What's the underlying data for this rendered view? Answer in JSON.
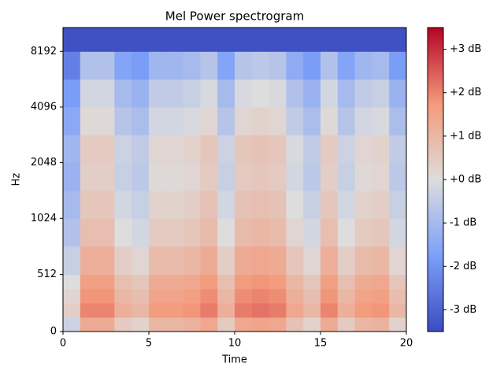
{
  "chart_data": {
    "type": "heatmap",
    "title": "Mel Power spectrogram",
    "xlabel": "Time",
    "ylabel": "Hz",
    "xlim": [
      0,
      20
    ],
    "xticks": [
      0,
      5,
      10,
      15,
      20
    ],
    "ylim": [
      0,
      11025
    ],
    "yticks": [
      0,
      512,
      1024,
      2048,
      4096,
      8192
    ],
    "yscale": "symlog",
    "linthresh": 1000,
    "base": 2,
    "y_edges": [
      0,
      128,
      256,
      384,
      512,
      768,
      1024,
      1448,
      2048,
      2896,
      4096,
      5793,
      8192,
      11025
    ],
    "z": [
      [
        -0.3,
        1.3,
        1.3,
        0.5,
        0.3,
        1.0,
        1.0,
        1.1,
        1.4,
        0.5,
        1.4,
        1.5,
        1.4,
        0.7,
        0.3,
        1.3,
        0.5,
        1.0,
        1.1,
        0.3
      ],
      [
        0.4,
        2.0,
        2.0,
        1.2,
        1.0,
        1.7,
        1.7,
        1.8,
        2.1,
        1.2,
        2.1,
        2.2,
        2.1,
        1.4,
        1.0,
        2.0,
        1.2,
        1.7,
        1.8,
        1.0
      ],
      [
        0.2,
        1.8,
        1.8,
        1.0,
        0.8,
        1.5,
        1.5,
        1.6,
        1.9,
        1.0,
        1.9,
        2.0,
        1.9,
        1.2,
        0.8,
        1.8,
        1.0,
        1.5,
        1.6,
        0.8
      ],
      [
        0.0,
        1.6,
        1.6,
        0.8,
        0.6,
        1.3,
        1.3,
        1.4,
        1.7,
        0.8,
        1.7,
        1.8,
        1.7,
        1.0,
        0.6,
        1.6,
        0.8,
        1.3,
        1.4,
        0.6
      ],
      [
        -0.4,
        1.2,
        1.2,
        0.4,
        0.2,
        0.9,
        0.9,
        1.0,
        1.3,
        0.4,
        1.3,
        1.4,
        1.3,
        0.6,
        0.2,
        1.2,
        0.4,
        0.9,
        1.0,
        0.2
      ],
      [
        -0.8,
        0.8,
        0.8,
        0.0,
        -0.2,
        0.5,
        0.5,
        0.6,
        0.9,
        0.0,
        0.9,
        1.0,
        0.9,
        0.2,
        -0.2,
        0.8,
        0.0,
        0.5,
        0.6,
        -0.2
      ],
      [
        -1.0,
        0.6,
        0.6,
        -0.2,
        -0.4,
        0.3,
        0.3,
        0.4,
        0.7,
        -0.2,
        0.7,
        0.8,
        0.7,
        0.0,
        -0.4,
        0.6,
        -0.2,
        0.3,
        0.4,
        -0.4
      ],
      [
        -1.2,
        0.4,
        0.4,
        -0.4,
        -0.6,
        0.1,
        0.1,
        0.2,
        0.5,
        -0.4,
        0.5,
        0.6,
        0.5,
        -0.2,
        -0.6,
        0.4,
        -0.4,
        0.1,
        0.2,
        -0.6
      ],
      [
        -1.1,
        0.5,
        0.5,
        -0.3,
        -0.5,
        0.2,
        0.2,
        0.3,
        0.6,
        -0.3,
        0.6,
        0.7,
        0.6,
        -0.1,
        -0.5,
        0.5,
        -0.3,
        0.2,
        0.3,
        -0.5
      ],
      [
        -1.5,
        0.1,
        0.1,
        -0.7,
        -0.9,
        -0.2,
        -0.2,
        -0.1,
        0.2,
        -0.7,
        0.2,
        0.3,
        0.2,
        -0.5,
        -0.9,
        0.1,
        -0.7,
        -0.2,
        -0.1,
        -0.9
      ],
      [
        -1.8,
        -0.2,
        -0.2,
        -1.0,
        -1.2,
        -0.5,
        -0.5,
        -0.4,
        -0.1,
        -1.0,
        -0.1,
        0,
        -0.1,
        -0.8,
        -1.2,
        -0.2,
        -1.0,
        -0.5,
        -0.4,
        -1.2
      ],
      [
        -2.4,
        -0.8,
        -0.8,
        -1.6,
        -1.8,
        -1.1,
        -1.1,
        -1.0,
        -0.7,
        -1.6,
        -0.7,
        -0.6,
        -0.7,
        -1.4,
        -1.8,
        -0.8,
        -1.6,
        -1.1,
        -1.0,
        -1.8
      ],
      [
        -3.4,
        -3.4,
        -3.4,
        -3.4,
        -3.4,
        -3.4,
        -3.4,
        -3.4,
        -3.4,
        -3.4,
        -3.4,
        -3.4,
        -3.4,
        -3.4,
        -3.4,
        -3.4,
        -3.4,
        -3.4,
        -3.4,
        -3.4
      ]
    ],
    "cmap": "coolwarm",
    "clim": [
      -3.5,
      3.5
    ],
    "cticks": [
      {
        "value": -3,
        "label": "-3 dB"
      },
      {
        "value": -2,
        "label": "-2 dB"
      },
      {
        "value": -1,
        "label": "-1 dB"
      },
      {
        "value": 0,
        "label": "+0 dB"
      },
      {
        "value": 1,
        "label": "+1 dB"
      },
      {
        "value": 2,
        "label": "+2 dB"
      },
      {
        "value": 3,
        "label": "+3 dB"
      }
    ]
  }
}
